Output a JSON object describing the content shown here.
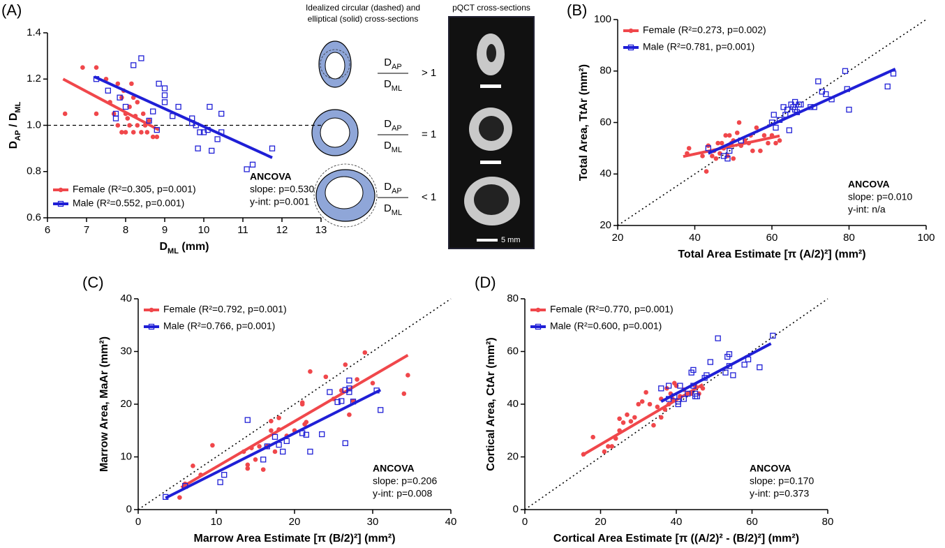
{
  "chart_data": [
    {
      "type": "scatter",
      "panel": "(A)",
      "xlabel": [
        "D",
        "ML",
        " (mm)"
      ],
      "ylabel": [
        "D",
        "AP",
        " / D",
        "ML"
      ],
      "xlim": [
        6,
        13
      ],
      "xticks": [
        6,
        7,
        8,
        9,
        10,
        11,
        12,
        13
      ],
      "ylim": [
        0.6,
        1.4
      ],
      "yticks": [
        0.6,
        0.8,
        {
          "value": 1,
          "label": "1.0"
        },
        1.2,
        1.4
      ],
      "hline": 1,
      "legend": "lower left",
      "annotation": [
        "ANCOVA",
        "slope: p=0.530",
        "y-int: p=0.001"
      ],
      "series": [
        {
          "name": "Female (R²=0.305, p=0.001)",
          "color": "#f0474b",
          "marker": "circle",
          "x": [
            6.45,
            6.9,
            7.25,
            7.25,
            7.5,
            7.6,
            7.7,
            7.8,
            7.8,
            7.9,
            7.9,
            8.0,
            8.0,
            8.1,
            8.1,
            8.15,
            8.2,
            8.25,
            8.3,
            8.3,
            8.4,
            8.45,
            8.5,
            8.55,
            8.6,
            8.7,
            8.8,
            8.2,
            7.95,
            8.05
          ],
          "values": [
            1.05,
            1.25,
            1.05,
            1.25,
            1.2,
            1.1,
            1.05,
            1.0,
            1.18,
            0.97,
            1.12,
            1.05,
            0.97,
            1.0,
            1.08,
            1.18,
            0.97,
            1.04,
            1.0,
            1.1,
            0.97,
            1.05,
            1.0,
            0.97,
            1.02,
            0.95,
            0.95,
            1.12,
            1.15,
            1.03
          ],
          "fit": {
            "x": [
              6.4,
              8.85
            ],
            "values": [
              1.2,
              0.98
            ]
          }
        },
        {
          "name": "Male (R²=0.552, p=0.001)",
          "color": "#1f1fd6",
          "marker": "square",
          "x": [
            7.25,
            7.55,
            7.75,
            7.75,
            7.85,
            8.0,
            8.2,
            8.4,
            8.6,
            8.7,
            8.8,
            8.85,
            9.0,
            9.0,
            9.0,
            9.2,
            9.35,
            9.7,
            9.8,
            9.85,
            9.9,
            10.0,
            10.1,
            10.15,
            10.2,
            10.35,
            10.45,
            10.45,
            11.1,
            11.25,
            11.75,
            9.7
          ],
          "values": [
            1.2,
            1.15,
            1.05,
            1.03,
            1.12,
            1.08,
            1.26,
            1.29,
            1.02,
            1.06,
            0.98,
            1.18,
            1.16,
            1.13,
            1.1,
            1.04,
            1.08,
            1.03,
            1.0,
            0.9,
            0.97,
            0.97,
            0.98,
            1.08,
            0.89,
            0.94,
            1.05,
            0.97,
            0.81,
            0.83,
            0.9,
            1.01
          ],
          "fit": {
            "x": [
              7.2,
              11.75
            ],
            "values": [
              1.21,
              0.86
            ]
          }
        }
      ]
    },
    {
      "type": "scatter",
      "panel": "(B)",
      "xlabel": [
        "Total Area Estimate [π (A/2)²] (mm²)"
      ],
      "ylabel": [
        "Total Area, TtAr (mm²)"
      ],
      "xlim": [
        20,
        100
      ],
      "xticks": [
        20,
        40,
        60,
        80,
        100
      ],
      "ylim": [
        20,
        100
      ],
      "yticks": [
        20,
        40,
        60,
        80,
        100
      ],
      "identity_line": true,
      "legend": "upper left",
      "annotation": [
        "ANCOVA",
        "slope: p=0.010",
        "y-int: n/a"
      ],
      "series": [
        {
          "name": "Female (R²=0.273, p=0.002)",
          "color": "#f0474b",
          "marker": "circle",
          "x": [
            38,
            38.5,
            42,
            43,
            43.5,
            44.5,
            45,
            45.5,
            46.5,
            47,
            47.5,
            48,
            48.5,
            49,
            49.5,
            50,
            51,
            51.5,
            52,
            53,
            54,
            54.5,
            55,
            56,
            57,
            58,
            59,
            60,
            61,
            62,
            46,
            50
          ],
          "values": [
            48,
            50,
            47,
            41,
            51,
            47,
            49,
            46,
            48,
            52,
            50,
            55,
            47,
            55,
            52,
            53,
            56,
            60,
            51,
            53,
            52,
            55,
            49,
            58,
            49,
            55,
            52,
            55,
            52,
            53,
            52,
            46
          ],
          "fit": {
            "x": [
              37,
              62
            ],
            "values": [
              46.8,
              54.8
            ]
          }
        },
        {
          "name": "Male (R²=0.781, p=0.001)",
          "color": "#1f1fd6",
          "marker": "square",
          "x": [
            43.5,
            47.5,
            48.5,
            49,
            52,
            60,
            60.5,
            61,
            62,
            63,
            63.5,
            64,
            64.5,
            65,
            65.5,
            66,
            66,
            66.5,
            67,
            67.5,
            70,
            71,
            72,
            73,
            74,
            75.5,
            79,
            79.5,
            80,
            90,
            91.5
          ],
          "values": [
            50,
            47,
            46,
            49,
            53,
            60,
            63,
            58,
            61,
            66,
            63,
            65,
            57,
            67,
            66,
            65,
            68,
            64,
            67,
            67,
            66,
            66,
            76,
            72,
            71,
            69,
            80,
            73,
            65,
            74,
            79
          ],
          "fit": {
            "x": [
              43.5,
              92
            ],
            "values": [
              48,
              80.8
            ]
          }
        }
      ]
    },
    {
      "type": "scatter",
      "panel": "(C)",
      "xlabel": [
        "Marrow Area Estimate [π (B/2)²] (mm²)"
      ],
      "ylabel": [
        "Marrow Area, MaAr (mm²)"
      ],
      "xlim": [
        0,
        40
      ],
      "xticks": [
        0,
        10,
        20,
        30,
        40
      ],
      "ylim": [
        0,
        40
      ],
      "yticks": [
        0,
        10,
        20,
        30,
        40
      ],
      "identity_line": true,
      "legend": "upper left",
      "annotation": [
        "ANCOVA",
        "slope: p=0.206",
        "y-int: p=0.008"
      ],
      "series": [
        {
          "name": "Female (R²=0.792, p=0.001)",
          "color": "#f0474b",
          "marker": "circle",
          "x": [
            5.3,
            6,
            7,
            8,
            9.5,
            13.5,
            14,
            14,
            14.5,
            15,
            15.5,
            16,
            16.5,
            17,
            17,
            18,
            18,
            19,
            20,
            21,
            21,
            21.3,
            21.5,
            22,
            24,
            25,
            26,
            26.5,
            27,
            27.5,
            28,
            29,
            30,
            34,
            34.5,
            17.5
          ],
          "values": [
            2.3,
            4.9,
            8.3,
            6.6,
            12.2,
            11,
            8.5,
            7.8,
            11.7,
            9.5,
            12,
            7.6,
            12,
            15,
            16.8,
            17.4,
            15.2,
            14,
            15,
            20.3,
            20,
            16.2,
            16.6,
            26.2,
            25.2,
            21,
            22.6,
            27.5,
            18,
            20.6,
            24.7,
            29.8,
            24,
            22,
            25.5,
            11
          ],
          "fit": {
            "x": [
              5.5,
              34.5
            ],
            "values": [
              4.2,
              29.3
            ]
          }
        },
        {
          "name": "Male (R²=0.766, p=0.001)",
          "color": "#1f1fd6",
          "marker": "square",
          "x": [
            3.5,
            6,
            10.5,
            11,
            14,
            16,
            16.5,
            17.5,
            18,
            18.5,
            19,
            21,
            21.5,
            22,
            23.5,
            24.5,
            25.5,
            26,
            26.5,
            26.5,
            27,
            27,
            27,
            27.5,
            30.5,
            31
          ],
          "values": [
            2.4,
            4.5,
            5.2,
            6.6,
            17,
            9.5,
            12,
            13.8,
            12.3,
            11,
            13,
            14.5,
            14.2,
            11,
            14.3,
            22.3,
            20.4,
            20.6,
            22.7,
            12.6,
            24.5,
            23,
            22.3,
            20.5,
            22.6,
            18.9
          ],
          "fit": {
            "x": [
              3.5,
              31
            ],
            "values": [
              2.2,
              22.7
            ]
          }
        }
      ]
    },
    {
      "type": "scatter",
      "panel": "(D)",
      "xlabel": [
        "Cortical Area Estimate [π ((A/2)² - (B/2)²] (mm²)"
      ],
      "ylabel": [
        "Cortical Area, CtAr (mm²)"
      ],
      "xlim": [
        0,
        80
      ],
      "xticks": [
        0,
        20,
        40,
        60,
        80
      ],
      "ylim": [
        0,
        80
      ],
      "yticks": [
        0,
        20,
        40,
        60,
        80
      ],
      "identity_line": true,
      "legend": "upper left",
      "annotation": [
        "ANCOVA",
        "slope: p=0.170",
        "y-int: p=0.373"
      ],
      "series": [
        {
          "name": "Female (R²=0.770, p=0.001)",
          "color": "#f0474b",
          "marker": "circle",
          "x": [
            15.5,
            18,
            21,
            22,
            23,
            24,
            25,
            25,
            26,
            27,
            28,
            29,
            30,
            31,
            32,
            33,
            34,
            35,
            36,
            37,
            37.5,
            38,
            38.5,
            39,
            39.5,
            40,
            41,
            42,
            43,
            44,
            45,
            46,
            47,
            36
          ],
          "values": [
            21,
            27.5,
            22,
            24,
            24,
            27,
            30,
            34.5,
            33,
            36,
            33.5,
            35,
            40,
            41,
            44.5,
            40,
            32,
            39,
            35,
            38,
            46,
            40,
            44,
            42,
            48,
            47,
            43,
            45.5,
            44,
            44,
            47,
            44,
            46,
            42
          ],
          "fit": {
            "x": [
              15,
              47
            ],
            "values": [
              20.5,
              47.5
            ]
          }
        },
        {
          "name": "Male (R²=0.600, p=0.001)",
          "color": "#1f1fd6",
          "marker": "square",
          "x": [
            36,
            38,
            38,
            39.5,
            40.5,
            40.5,
            41,
            42,
            43,
            44,
            44.5,
            44.5,
            45,
            45,
            45.5,
            47.5,
            48,
            49,
            51,
            53,
            53.5,
            54,
            54,
            55,
            58,
            59,
            62,
            65.5
          ],
          "values": [
            46,
            47,
            42,
            43,
            40,
            41,
            47,
            42,
            44,
            52,
            53,
            47,
            44,
            43,
            43,
            50,
            51,
            56,
            65,
            52,
            58,
            59,
            54.5,
            51,
            55,
            57,
            54,
            66
          ],
          "fit": {
            "x": [
              36,
              65
            ],
            "values": [
              41,
              63
            ]
          }
        }
      ]
    }
  ],
  "diagram": {
    "title_lines": [
      "Idealized circular (dashed) and",
      "elliptical (solid) cross-sections"
    ],
    "ratios": [
      {
        "num": [
          "D",
          "AP"
        ],
        "den": [
          "D",
          "ML"
        ],
        "relation": "> 1"
      },
      {
        "num": [
          "D",
          "AP"
        ],
        "den": [
          "D",
          "ML"
        ],
        "relation": "= 1"
      },
      {
        "num": [
          "D",
          "AP"
        ],
        "den": [
          "D",
          "ML"
        ],
        "relation": "< 1"
      }
    ]
  },
  "image": {
    "title": "pQCT cross-sections",
    "scale_label": "5 mm"
  }
}
